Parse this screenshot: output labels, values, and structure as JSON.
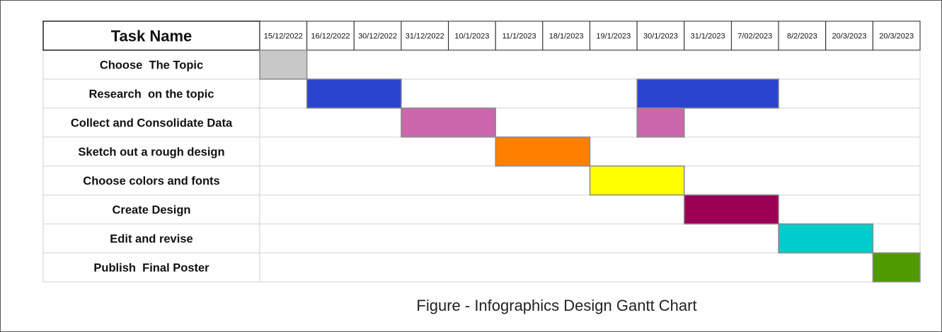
{
  "chart_data": {
    "type": "table",
    "header_label": "Task Name",
    "dates": [
      "15/12/2022",
      "16/12/2022",
      "30/12/2022",
      "31/12/2022",
      "10/1/2023",
      "11/1/2023",
      "18/1/2023",
      "19/1/2023",
      "30/1/2023",
      "31/1/2023",
      "7/02/2023",
      "8/2/2023",
      "20/3/2023",
      "20/3/2023"
    ],
    "tasks": [
      {
        "name": "Choose  The Topic",
        "bars": [
          {
            "start": 0,
            "end": 1,
            "color": "#c8c8c8"
          }
        ]
      },
      {
        "name": "Research  on the topic",
        "bars": [
          {
            "start": 1,
            "end": 3,
            "color": "#2b44cf"
          },
          {
            "start": 8,
            "end": 11,
            "color": "#2b44cf"
          }
        ]
      },
      {
        "name": "Collect and Consolidate Data",
        "bars": [
          {
            "start": 3,
            "end": 5,
            "color": "#cc66ad"
          },
          {
            "start": 8,
            "end": 9,
            "color": "#cc66ad"
          }
        ]
      },
      {
        "name": "Sketch out a rough design",
        "bars": [
          {
            "start": 5,
            "end": 7,
            "color": "#ff7f00"
          }
        ]
      },
      {
        "name": "Choose colors and fonts",
        "bars": [
          {
            "start": 7,
            "end": 9,
            "color": "#ffff00"
          }
        ]
      },
      {
        "name": "Create Design",
        "bars": [
          {
            "start": 9,
            "end": 11,
            "color": "#990055"
          }
        ]
      },
      {
        "name": "Edit and revise",
        "bars": [
          {
            "start": 11,
            "end": 13,
            "color": "#00cccc"
          }
        ]
      },
      {
        "name": "Publish  Final Poster",
        "bars": [
          {
            "start": 13,
            "end": 14,
            "color": "#4e9a00"
          }
        ]
      }
    ],
    "caption": "Figure - Infographics Design Gantt Chart"
  }
}
